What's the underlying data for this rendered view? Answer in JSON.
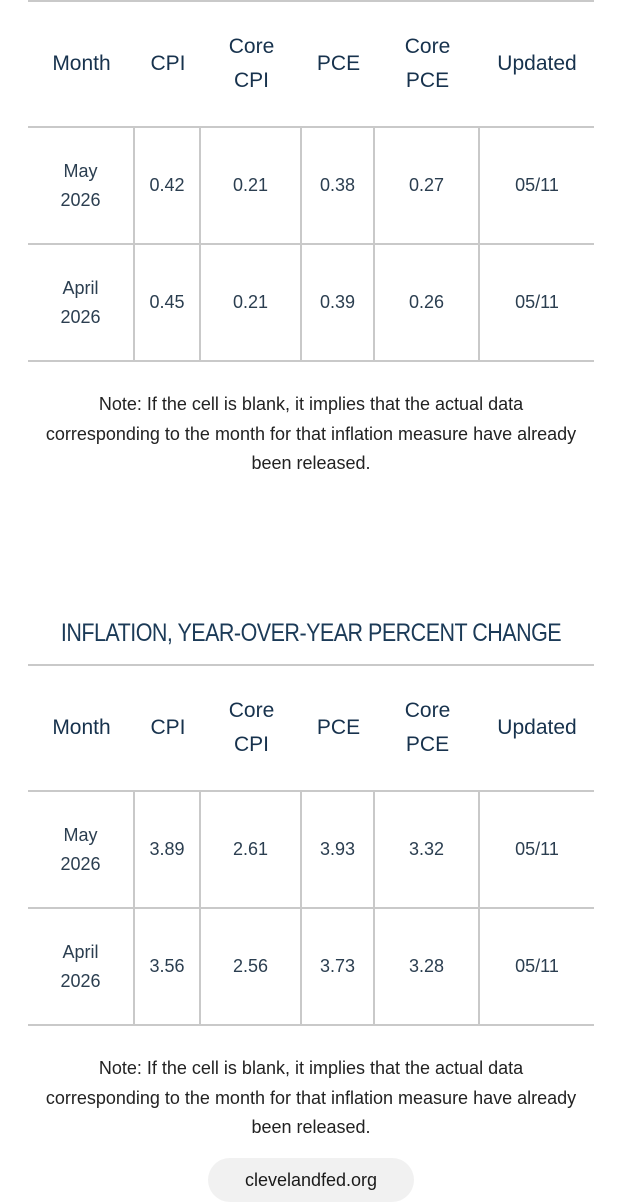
{
  "mom_table": {
    "headers": [
      "Month",
      "CPI",
      "Core\nCPI",
      "PCE",
      "Core\nPCE",
      "Updated"
    ],
    "rows": [
      [
        "May\n2026",
        "0.42",
        "0.21",
        "0.38",
        "0.27",
        "05/11"
      ],
      [
        "April\n2026",
        "0.45",
        "0.21",
        "0.39",
        "0.26",
        "05/11"
      ]
    ],
    "note": "Note: If the cell is blank, it implies that the actual data corresponding to the month for that inflation measure have already been released."
  },
  "yoy_section": {
    "title": "INFLATION, YEAR-OVER-YEAR PERCENT CHANGE"
  },
  "yoy_table": {
    "headers": [
      "Month",
      "CPI",
      "Core\nCPI",
      "PCE",
      "Core\nPCE",
      "Updated"
    ],
    "rows": [
      [
        "May\n2026",
        "3.89",
        "2.61",
        "3.93",
        "3.32",
        "05/11"
      ],
      [
        "April\n2026",
        "3.56",
        "2.56",
        "3.73",
        "3.28",
        "05/11"
      ]
    ],
    "note": "Note: If the cell is blank, it implies that the actual data corresponding to the month for that inflation measure have already been released."
  },
  "browser": {
    "url": "clevelandfed.org"
  }
}
